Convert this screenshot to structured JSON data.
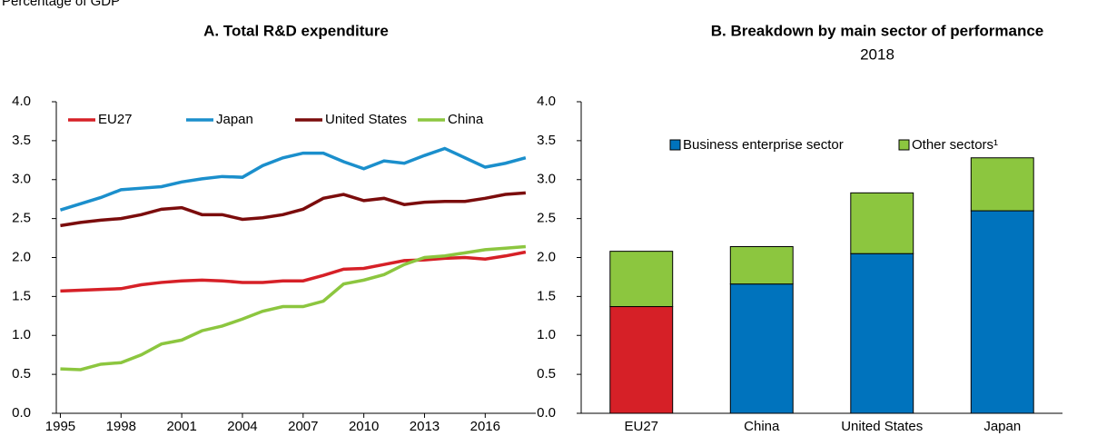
{
  "page_label": "Percentage of GDP",
  "chart_data": [
    {
      "type": "line",
      "title": "A. Total R&D expenditure",
      "x": [
        1995,
        1996,
        1997,
        1998,
        1999,
        2000,
        2001,
        2002,
        2003,
        2004,
        2005,
        2006,
        2007,
        2008,
        2009,
        2010,
        2011,
        2012,
        2013,
        2014,
        2015,
        2016,
        2017,
        2018
      ],
      "xlim": [
        1994.8,
        2018.5
      ],
      "xticks": [
        1995,
        1998,
        2001,
        2004,
        2007,
        2010,
        2013,
        2016
      ],
      "ylim": [
        0,
        4
      ],
      "yticks": [
        {
          "value": 0,
          "label": "0.0"
        },
        {
          "value": 0.5,
          "label": "0.5"
        },
        {
          "value": 1,
          "label": "1.0"
        },
        {
          "value": 1.5,
          "label": "1.5"
        },
        {
          "value": 2,
          "label": "2.0"
        },
        {
          "value": 2.5,
          "label": "2.5"
        },
        {
          "value": 3,
          "label": "3.0"
        },
        {
          "value": 3.5,
          "label": "3.5"
        },
        {
          "value": 4,
          "label": "4.0"
        }
      ],
      "series": [
        {
          "name": "EU27",
          "color": "#d62027",
          "values": [
            1.57,
            1.58,
            1.59,
            1.6,
            1.65,
            1.68,
            1.7,
            1.71,
            1.7,
            1.68,
            1.68,
            1.7,
            1.7,
            1.77,
            1.85,
            1.86,
            1.91,
            1.96,
            1.97,
            1.99,
            2.0,
            1.98,
            2.02,
            2.07
          ]
        },
        {
          "name": "Japan",
          "color": "#1b8fcc",
          "values": [
            2.61,
            2.69,
            2.77,
            2.87,
            2.89,
            2.91,
            2.97,
            3.01,
            3.04,
            3.03,
            3.18,
            3.28,
            3.34,
            3.34,
            3.23,
            3.14,
            3.24,
            3.21,
            3.31,
            3.4,
            3.28,
            3.16,
            3.21,
            3.28
          ]
        },
        {
          "name": "United States",
          "color": "#7b0c0c",
          "values": [
            2.41,
            2.45,
            2.48,
            2.5,
            2.55,
            2.62,
            2.64,
            2.55,
            2.55,
            2.49,
            2.51,
            2.55,
            2.62,
            2.76,
            2.81,
            2.73,
            2.76,
            2.68,
            2.71,
            2.72,
            2.72,
            2.76,
            2.81,
            2.83
          ]
        },
        {
          "name": "China",
          "color": "#8cc63f",
          "values": [
            0.57,
            0.56,
            0.63,
            0.65,
            0.75,
            0.89,
            0.94,
            1.06,
            1.12,
            1.21,
            1.31,
            1.37,
            1.37,
            1.44,
            1.66,
            1.71,
            1.78,
            1.91,
            2.0,
            2.02,
            2.06,
            2.1,
            2.12,
            2.14
          ]
        }
      ]
    },
    {
      "type": "stacked_bar",
      "title": "B. Breakdown by main sector of performance",
      "subtitle": "2018",
      "categories": [
        "EU27",
        "China",
        "United States",
        "Japan"
      ],
      "ylim": [
        0,
        4
      ],
      "yticks": [
        {
          "value": 0,
          "label": "0.0"
        },
        {
          "value": 0.5,
          "label": "0.5"
        },
        {
          "value": 1,
          "label": "1.0"
        },
        {
          "value": 1.5,
          "label": "1.5"
        },
        {
          "value": 2,
          "label": "2.0"
        },
        {
          "value": 2.5,
          "label": "2.5"
        },
        {
          "value": 3,
          "label": "3.0"
        },
        {
          "value": 3.5,
          "label": "3.5"
        },
        {
          "value": 4,
          "label": "4.0"
        }
      ],
      "series": [
        {
          "name": "Business enterprise sector",
          "color": "#0073bd",
          "colors": [
            "#d62027",
            "#0073bd",
            "#0073bd",
            "#0073bd"
          ],
          "values": [
            1.37,
            1.66,
            2.05,
            2.6
          ]
        },
        {
          "name": "Other sectors¹",
          "color": "#8cc63f",
          "values": [
            0.71,
            0.48,
            0.78,
            0.68
          ]
        }
      ]
    }
  ]
}
